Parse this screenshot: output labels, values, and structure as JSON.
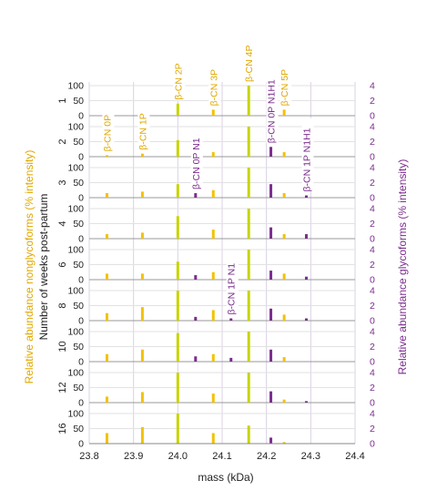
{
  "chart_data": {
    "type": "bar",
    "xlabel": "mass (kDa)",
    "ylabel_left": "Relative abundance nonglycoforms (% intensity)",
    "ylabel_right": "Relative abundance glycoforms (% intensity)",
    "row_axis_label": "Number of weeks post-partum",
    "xlim": [
      23.8,
      24.4
    ],
    "x_ticks": [
      "23.8",
      "23.9",
      "24.0",
      "24.1",
      "24.2",
      "24.3",
      "24.4"
    ],
    "left_ylim": [
      0,
      100
    ],
    "left_ticks": [
      "0",
      "50",
      "100"
    ],
    "right_ylim": [
      0,
      4
    ],
    "right_ticks": [
      "0",
      "2",
      "4"
    ],
    "row_labels": [
      "1",
      "2",
      "3",
      "4",
      "6",
      "8",
      "10",
      "12",
      "16"
    ],
    "colors": {
      "nonglyco": "#f2c200",
      "nonglyco_major": "#c8d400",
      "glyco": "#7b2d8e"
    },
    "nonglyco_series": [
      {
        "label": "β-CN 0P",
        "mass": 23.84,
        "values": [
          0,
          5,
          15,
          15,
          20,
          25,
          25,
          20,
          35
        ]
      },
      {
        "label": "β-CN 1P",
        "mass": 23.92,
        "values": [
          0,
          10,
          20,
          20,
          20,
          45,
          40,
          35,
          55
        ]
      },
      {
        "label": "β-CN 2P",
        "mass": 24.0,
        "values": [
          40,
          55,
          45,
          75,
          60,
          100,
          95,
          100,
          100
        ]
      },
      {
        "label": "β-CN 3P",
        "mass": 24.08,
        "values": [
          20,
          15,
          25,
          30,
          25,
          35,
          25,
          30,
          35
        ]
      },
      {
        "label": "β-CN 4P",
        "mass": 24.16,
        "values": [
          100,
          100,
          100,
          100,
          100,
          100,
          100,
          100,
          60
        ]
      },
      {
        "label": "β-CN 5P",
        "mass": 24.24,
        "values": [
          20,
          15,
          15,
          15,
          20,
          20,
          15,
          10,
          5
        ]
      }
    ],
    "glyco_series": [
      {
        "label": "β-CN 0P N1",
        "mass": 24.04,
        "values": [
          0,
          0,
          0.6,
          0,
          0.6,
          0.5,
          0.7,
          0,
          0
        ]
      },
      {
        "label": "β-CN 1P N1",
        "mass": 24.12,
        "values": [
          0,
          0,
          0,
          0,
          0,
          0.3,
          0.5,
          0,
          0
        ]
      },
      {
        "label": "β-CN 0P N1H1",
        "mass": 24.21,
        "values": [
          0,
          1.3,
          1.8,
          1.5,
          1.2,
          1.6,
          1.6,
          1.5,
          0.8
        ]
      },
      {
        "label": "β-CN 1P N1H1",
        "mass": 24.29,
        "values": [
          0,
          0,
          0.3,
          0.6,
          0.4,
          0.3,
          0,
          0.2,
          0
        ]
      }
    ]
  }
}
